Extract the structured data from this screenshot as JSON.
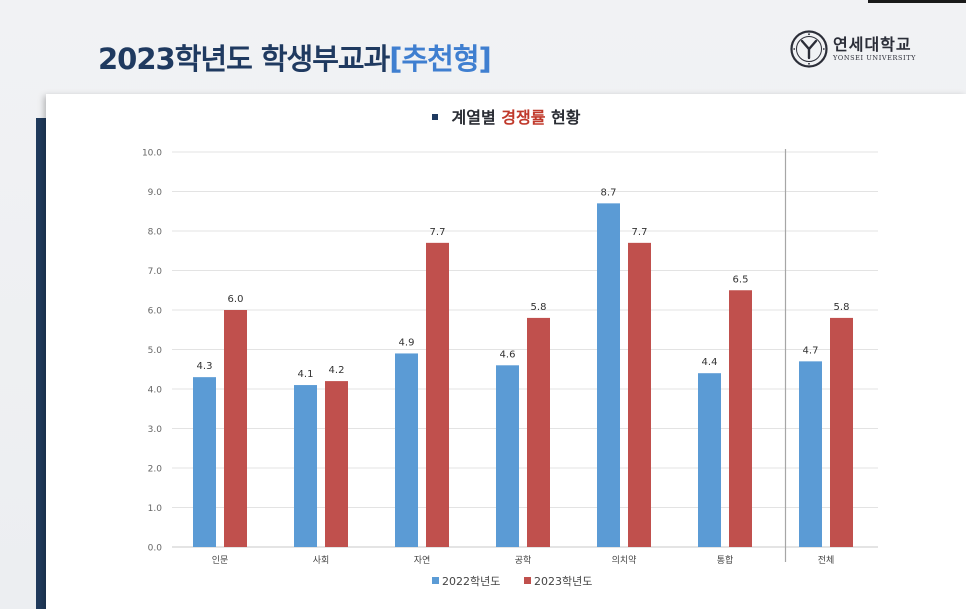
{
  "header": {
    "title_main": "2023학년도  학생부교과",
    "title_bracket": "[추천형]",
    "logo_name": "연세대학교",
    "logo_sub": "YONSEI UNIVERSITY"
  },
  "chart_heading": {
    "prefix": "계열별 ",
    "accent": "경쟁률",
    "suffix": " 현황"
  },
  "colors": {
    "series_2022": "#5b9bd5",
    "series_2023": "#c0504d",
    "title": "#1f3a60",
    "title_bracket": "#3f7fd0",
    "accent": "#c0392b"
  },
  "chart_data": {
    "type": "bar",
    "title": "계열별 경쟁률 현황",
    "categories": [
      "인문",
      "사회",
      "자연",
      "공학",
      "의치약",
      "통합",
      "전체"
    ],
    "series": [
      {
        "name": "2022학년도",
        "values": [
          4.3,
          4.1,
          4.9,
          4.6,
          8.7,
          4.4,
          4.7
        ]
      },
      {
        "name": "2023학년도",
        "values": [
          6.0,
          4.2,
          7.7,
          5.8,
          7.7,
          6.5,
          5.8
        ]
      }
    ],
    "ylim": [
      0,
      10
    ],
    "yticks": [
      "0.0",
      "1.0",
      "2.0",
      "3.0",
      "4.0",
      "5.0",
      "6.0",
      "7.0",
      "8.0",
      "9.0",
      "10.0"
    ],
    "grid": true,
    "legend": "bottom-center",
    "separator_before_category": "전체"
  }
}
